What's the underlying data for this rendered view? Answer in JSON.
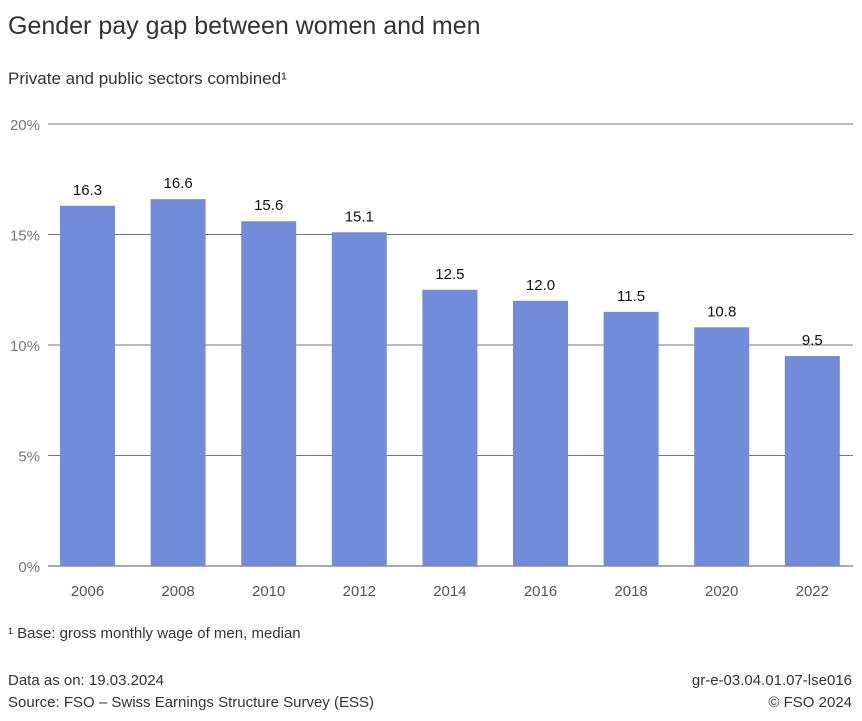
{
  "chart_data": {
    "type": "bar",
    "title": "Gender pay gap between women and men",
    "subtitle": "Private and public sectors combined¹",
    "categories": [
      "2006",
      "2008",
      "2010",
      "2012",
      "2014",
      "2016",
      "2018",
      "2020",
      "2022"
    ],
    "values": [
      16.3,
      16.6,
      15.6,
      15.1,
      12.5,
      12.0,
      11.5,
      10.8,
      9.5
    ],
    "data_labels": [
      "16.3",
      "16.6",
      "15.6",
      "15.1",
      "12.5",
      "12.0",
      "11.5",
      "10.8",
      "9.5"
    ],
    "ylim": [
      0,
      20
    ],
    "yticks": [
      0,
      5,
      10,
      15,
      20
    ],
    "ytick_labels": [
      "0%",
      "5%",
      "10%",
      "15%",
      "20%"
    ],
    "xlabel": "",
    "ylabel": "",
    "grid": true,
    "bar_color": "#728cd9"
  },
  "footnote": "¹ Base: gross monthly wage of men, median",
  "footer": {
    "data_as_on": "Data as on: 19.03.2024",
    "source": "Source: FSO – Swiss Earnings Structure Survey (ESS)",
    "code": "gr-e-03.04.01.07-lse016",
    "copyright": "© FSO 2024"
  }
}
